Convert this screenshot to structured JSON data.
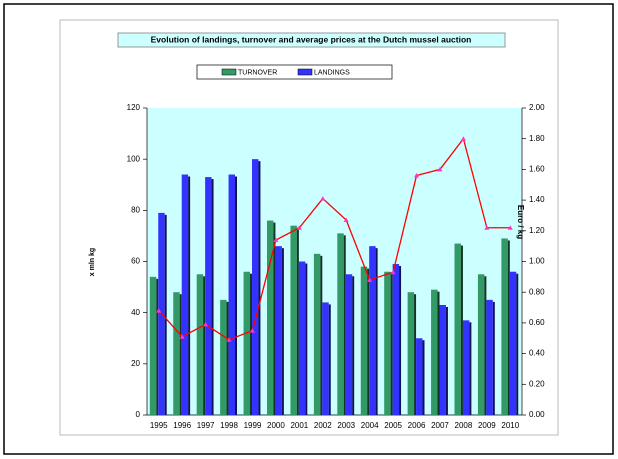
{
  "chart_data": {
    "type": "bar",
    "title": "Evolution of landings, turnover and average prices at the Dutch mussel auction",
    "y_label": "x mln kg",
    "y2_label": "Euro / kg",
    "categories": [
      "1995",
      "1996",
      "1997",
      "1998",
      "1999",
      "2000",
      "2001",
      "2002",
      "2003",
      "2004",
      "2005",
      "2006",
      "2007",
      "2008",
      "2009",
      "2010"
    ],
    "series": [
      {
        "name": "TURNOVER",
        "color": "#339966",
        "values": [
          54,
          48,
          55,
          45,
          56,
          76,
          74,
          63,
          71,
          58,
          56,
          48,
          49,
          67,
          55,
          69
        ]
      },
      {
        "name": "LANDINGS",
        "color": "#3333ff",
        "values": [
          79,
          94,
          93,
          94,
          100,
          66,
          60,
          44,
          55,
          66,
          59,
          30,
          43,
          37,
          45,
          56
        ]
      },
      {
        "type": "line",
        "axis": "y2",
        "color": "#ff0000",
        "values": [
          0.68,
          0.51,
          0.59,
          0.49,
          0.55,
          1.14,
          1.22,
          1.41,
          1.27,
          0.88,
          0.93,
          1.56,
          1.6,
          1.8,
          1.22,
          1.22
        ]
      }
    ],
    "ylim": [
      0,
      120
    ],
    "yticks": [
      0,
      20,
      40,
      60,
      80,
      100,
      120
    ],
    "y2lim": [
      0,
      2
    ],
    "y2ticks": [
      {
        "value": 0,
        "label": "0.00"
      },
      {
        "value": 0.2,
        "label": "0.20"
      },
      {
        "value": 0.4,
        "label": "0.40"
      },
      {
        "value": 0.6,
        "label": "0.60"
      },
      {
        "value": 0.8,
        "label": "0.80"
      },
      {
        "value": 1,
        "label": "1.00"
      },
      {
        "value": 1.2,
        "label": "1.20"
      },
      {
        "value": 1.4,
        "label": "1.40"
      },
      {
        "value": 1.6,
        "label": "1.60"
      },
      {
        "value": 1.8,
        "label": "1.80"
      },
      {
        "value": 2,
        "label": "2.00"
      }
    ],
    "legend": "top"
  }
}
